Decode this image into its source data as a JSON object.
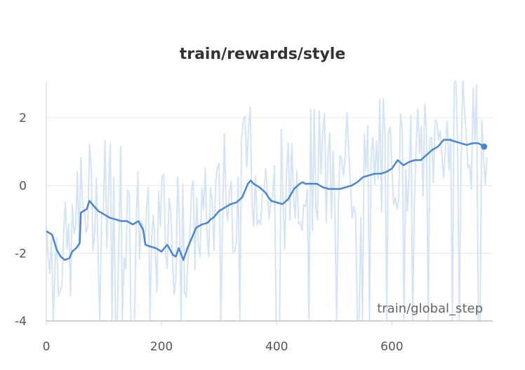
{
  "chart_data": {
    "type": "line",
    "title": "train/rewards/style",
    "xlabel": "train/global_step",
    "ylabel": "",
    "xlim": [
      0,
      775
    ],
    "ylim": [
      -4,
      3.1
    ],
    "x_ticks": [
      0,
      200,
      400,
      600
    ],
    "y_ticks": [
      -4,
      -2,
      0,
      2
    ],
    "x_tick_labels": [
      "0",
      "200",
      "400",
      "600"
    ],
    "y_tick_labels": [
      "-4",
      "-2",
      "0",
      "2"
    ],
    "grid": true,
    "legend": "none",
    "colors": {
      "smoothed": "#4a86cf",
      "raw": "#cfe1f4",
      "grid": "#e6e6e6",
      "axis": "#d0d0d0"
    },
    "series": [
      {
        "role": "smoothed",
        "points": [
          [
            0,
            -1.35
          ],
          [
            10,
            -1.45
          ],
          [
            18,
            -1.9
          ],
          [
            25,
            -2.1
          ],
          [
            32,
            -2.2
          ],
          [
            40,
            -2.15
          ],
          [
            45,
            -1.95
          ],
          [
            52,
            -1.85
          ],
          [
            58,
            -1.7
          ],
          [
            60,
            -0.8
          ],
          [
            65,
            -0.75
          ],
          [
            70,
            -0.7
          ],
          [
            75,
            -0.45
          ],
          [
            82,
            -0.6
          ],
          [
            90,
            -0.75
          ],
          [
            100,
            -0.85
          ],
          [
            110,
            -0.95
          ],
          [
            120,
            -1.0
          ],
          [
            130,
            -1.05
          ],
          [
            140,
            -1.05
          ],
          [
            150,
            -1.15
          ],
          [
            160,
            -1.05
          ],
          [
            168,
            -1.3
          ],
          [
            172,
            -1.75
          ],
          [
            180,
            -1.8
          ],
          [
            190,
            -1.85
          ],
          [
            200,
            -1.95
          ],
          [
            210,
            -1.75
          ],
          [
            215,
            -1.9
          ],
          [
            220,
            -2.05
          ],
          [
            225,
            -2.1
          ],
          [
            230,
            -1.85
          ],
          [
            238,
            -2.2
          ],
          [
            245,
            -1.85
          ],
          [
            250,
            -1.65
          ],
          [
            255,
            -1.45
          ],
          [
            260,
            -1.25
          ],
          [
            265,
            -1.2
          ],
          [
            270,
            -1.15
          ],
          [
            280,
            -1.1
          ],
          [
            285,
            -1.0
          ],
          [
            290,
            -0.95
          ],
          [
            300,
            -0.75
          ],
          [
            310,
            -0.65
          ],
          [
            320,
            -0.55
          ],
          [
            330,
            -0.5
          ],
          [
            340,
            -0.35
          ],
          [
            345,
            -0.15
          ],
          [
            350,
            0.05
          ],
          [
            355,
            0.15
          ],
          [
            360,
            0.05
          ],
          [
            370,
            -0.05
          ],
          [
            380,
            -0.2
          ],
          [
            390,
            -0.45
          ],
          [
            400,
            -0.5
          ],
          [
            410,
            -0.55
          ],
          [
            420,
            -0.4
          ],
          [
            430,
            -0.1
          ],
          [
            440,
            0.05
          ],
          [
            445,
            0.1
          ],
          [
            450,
            0.05
          ],
          [
            460,
            0.05
          ],
          [
            470,
            0.05
          ],
          [
            480,
            -0.05
          ],
          [
            490,
            -0.1
          ],
          [
            500,
            -0.1
          ],
          [
            510,
            -0.1
          ],
          [
            520,
            -0.05
          ],
          [
            530,
            0.0
          ],
          [
            540,
            0.1
          ],
          [
            550,
            0.25
          ],
          [
            560,
            0.3
          ],
          [
            570,
            0.35
          ],
          [
            580,
            0.35
          ],
          [
            590,
            0.4
          ],
          [
            600,
            0.5
          ],
          [
            610,
            0.75
          ],
          [
            620,
            0.6
          ],
          [
            630,
            0.7
          ],
          [
            640,
            0.75
          ],
          [
            650,
            0.75
          ],
          [
            660,
            0.9
          ],
          [
            670,
            1.05
          ],
          [
            680,
            1.15
          ],
          [
            690,
            1.35
          ],
          [
            700,
            1.35
          ],
          [
            710,
            1.3
          ],
          [
            720,
            1.25
          ],
          [
            730,
            1.2
          ],
          [
            740,
            1.25
          ],
          [
            750,
            1.25
          ],
          [
            755,
            1.2
          ],
          [
            760,
            1.15
          ]
        ]
      }
    ],
    "raw_band_note_values": {
      "max": 3.1,
      "min": -4.0
    }
  }
}
